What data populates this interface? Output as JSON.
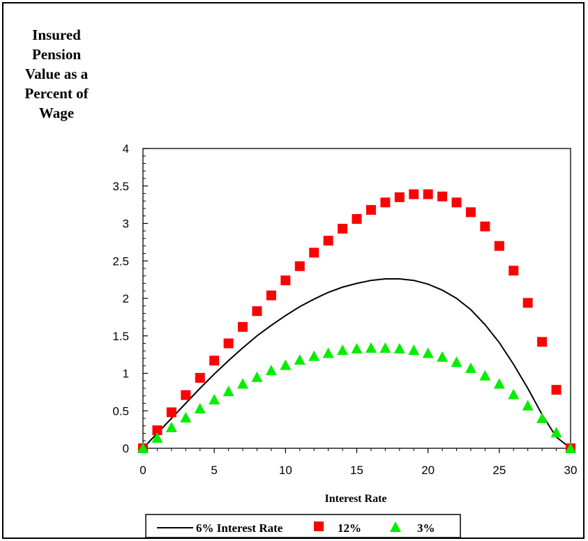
{
  "chart_data": {
    "type": "scatter",
    "title": "",
    "ylabel_lines": [
      "Insured",
      "Pension",
      "Value as a",
      "Percent of",
      "Wage"
    ],
    "xlabel": "Interest Rate",
    "xlim": [
      0,
      30
    ],
    "ylim": [
      0,
      4
    ],
    "x_ticks": [
      "0",
      "5",
      "10",
      "15",
      "20",
      "25",
      "30"
    ],
    "y_ticks": [
      "0",
      "0.5",
      "1",
      "1.5",
      "2",
      "2.5",
      "3",
      "3.5",
      "4"
    ],
    "grid": false,
    "legend_position": "bottom",
    "series": [
      {
        "name": "6% Interest Rate",
        "style": "line",
        "color": "#000000",
        "x": [
          0,
          1,
          2,
          3,
          4,
          5,
          6,
          7,
          8,
          9,
          10,
          11,
          12,
          13,
          14,
          15,
          16,
          17,
          18,
          19,
          20,
          21,
          22,
          23,
          24,
          25,
          26,
          27,
          28,
          29,
          30
        ],
        "y": [
          0,
          0.2,
          0.4,
          0.6,
          0.8,
          0.99,
          1.17,
          1.34,
          1.5,
          1.64,
          1.77,
          1.89,
          1.99,
          2.08,
          2.15,
          2.2,
          2.24,
          2.26,
          2.26,
          2.24,
          2.19,
          2.11,
          2.0,
          1.85,
          1.65,
          1.41,
          1.12,
          0.8,
          0.45,
          0.15,
          0
        ]
      },
      {
        "name": "12%",
        "style": "square",
        "color": "#ff0000",
        "x": [
          0,
          1,
          2,
          3,
          4,
          5,
          6,
          7,
          8,
          9,
          10,
          11,
          12,
          13,
          14,
          15,
          16,
          17,
          18,
          19,
          20,
          21,
          22,
          23,
          24,
          25,
          26,
          27,
          28,
          29,
          30
        ],
        "y": [
          0,
          0.24,
          0.48,
          0.71,
          0.94,
          1.17,
          1.4,
          1.62,
          1.83,
          2.04,
          2.24,
          2.43,
          2.61,
          2.77,
          2.93,
          3.06,
          3.18,
          3.28,
          3.35,
          3.39,
          3.39,
          3.36,
          3.28,
          3.15,
          2.96,
          2.7,
          2.37,
          1.94,
          1.42,
          0.78,
          0
        ]
      },
      {
        "name": "3%",
        "style": "triangle",
        "color": "#00ee00",
        "x": [
          0,
          1,
          2,
          3,
          4,
          5,
          6,
          7,
          8,
          9,
          10,
          11,
          12,
          13,
          14,
          15,
          16,
          17,
          18,
          19,
          20,
          21,
          22,
          23,
          24,
          25,
          26,
          27,
          28,
          29,
          30
        ],
        "y": [
          0,
          0.14,
          0.28,
          0.41,
          0.53,
          0.65,
          0.76,
          0.86,
          0.95,
          1.04,
          1.11,
          1.18,
          1.23,
          1.27,
          1.31,
          1.33,
          1.34,
          1.34,
          1.33,
          1.31,
          1.27,
          1.22,
          1.15,
          1.07,
          0.97,
          0.86,
          0.72,
          0.57,
          0.4,
          0.21,
          0
        ]
      }
    ]
  }
}
